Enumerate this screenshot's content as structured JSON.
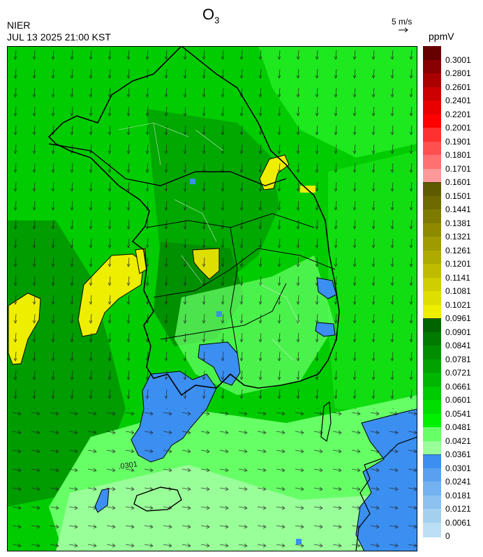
{
  "header": {
    "agency": "NIER",
    "datetime": "JUL 13 2025 21:00 KST",
    "title": "O",
    "title_sub": "3",
    "wind_reference": "5 m/s",
    "unit": "ppmV"
  },
  "map": {
    "contour_label": ".0301"
  },
  "legend": {
    "levels": [
      {
        "label": "0.3001",
        "color": "#660000"
      },
      {
        "label": "0.2801",
        "color": "#880000"
      },
      {
        "label": "0.2601",
        "color": "#aa0000"
      },
      {
        "label": "0.2401",
        "color": "#cc0000"
      },
      {
        "label": "0.2201",
        "color": "#e80000"
      },
      {
        "label": "0.2001",
        "color": "#ff0000"
      },
      {
        "label": "0.1901",
        "color": "#ff3030"
      },
      {
        "label": "0.1801",
        "color": "#ff5050"
      },
      {
        "label": "0.1701",
        "color": "#ff7070"
      },
      {
        "label": "0.1601",
        "color": "#ff9898"
      },
      {
        "label": "0.1501",
        "color": "#5e5a00"
      },
      {
        "label": "0.1441",
        "color": "#6e6a00"
      },
      {
        "label": "0.1381",
        "color": "#7e7a00"
      },
      {
        "label": "0.1321",
        "color": "#8e8a00"
      },
      {
        "label": "0.1261",
        "color": "#9e9a00"
      },
      {
        "label": "0.1201",
        "color": "#aeaa00"
      },
      {
        "label": "0.1141",
        "color": "#bebb00"
      },
      {
        "label": "0.1081",
        "color": "#cece00"
      },
      {
        "label": "0.1021",
        "color": "#dede00"
      },
      {
        "label": "0.0961",
        "color": "#eeee00"
      },
      {
        "label": "0.0901",
        "color": "#006400"
      },
      {
        "label": "0.0841",
        "color": "#007a00"
      },
      {
        "label": "0.0781",
        "color": "#008e00"
      },
      {
        "label": "0.0721",
        "color": "#00a200"
      },
      {
        "label": "0.0661",
        "color": "#00b600"
      },
      {
        "label": "0.0601",
        "color": "#00ca00"
      },
      {
        "label": "0.0541",
        "color": "#00de00"
      },
      {
        "label": "0.0481",
        "color": "#00f000"
      },
      {
        "label": "0.0421",
        "color": "#66ff66"
      },
      {
        "label": "0.0361",
        "color": "#99ff99"
      },
      {
        "label": "0.0301",
        "color": "#3b8ff0"
      },
      {
        "label": "0.0241",
        "color": "#5aa0f0"
      },
      {
        "label": "0.0181",
        "color": "#73b1f0"
      },
      {
        "label": "0.0121",
        "color": "#8cc1f0"
      },
      {
        "label": "0.0061",
        "color": "#a4d0f0"
      },
      {
        "label": "0",
        "color": "#bcdff5"
      }
    ]
  }
}
